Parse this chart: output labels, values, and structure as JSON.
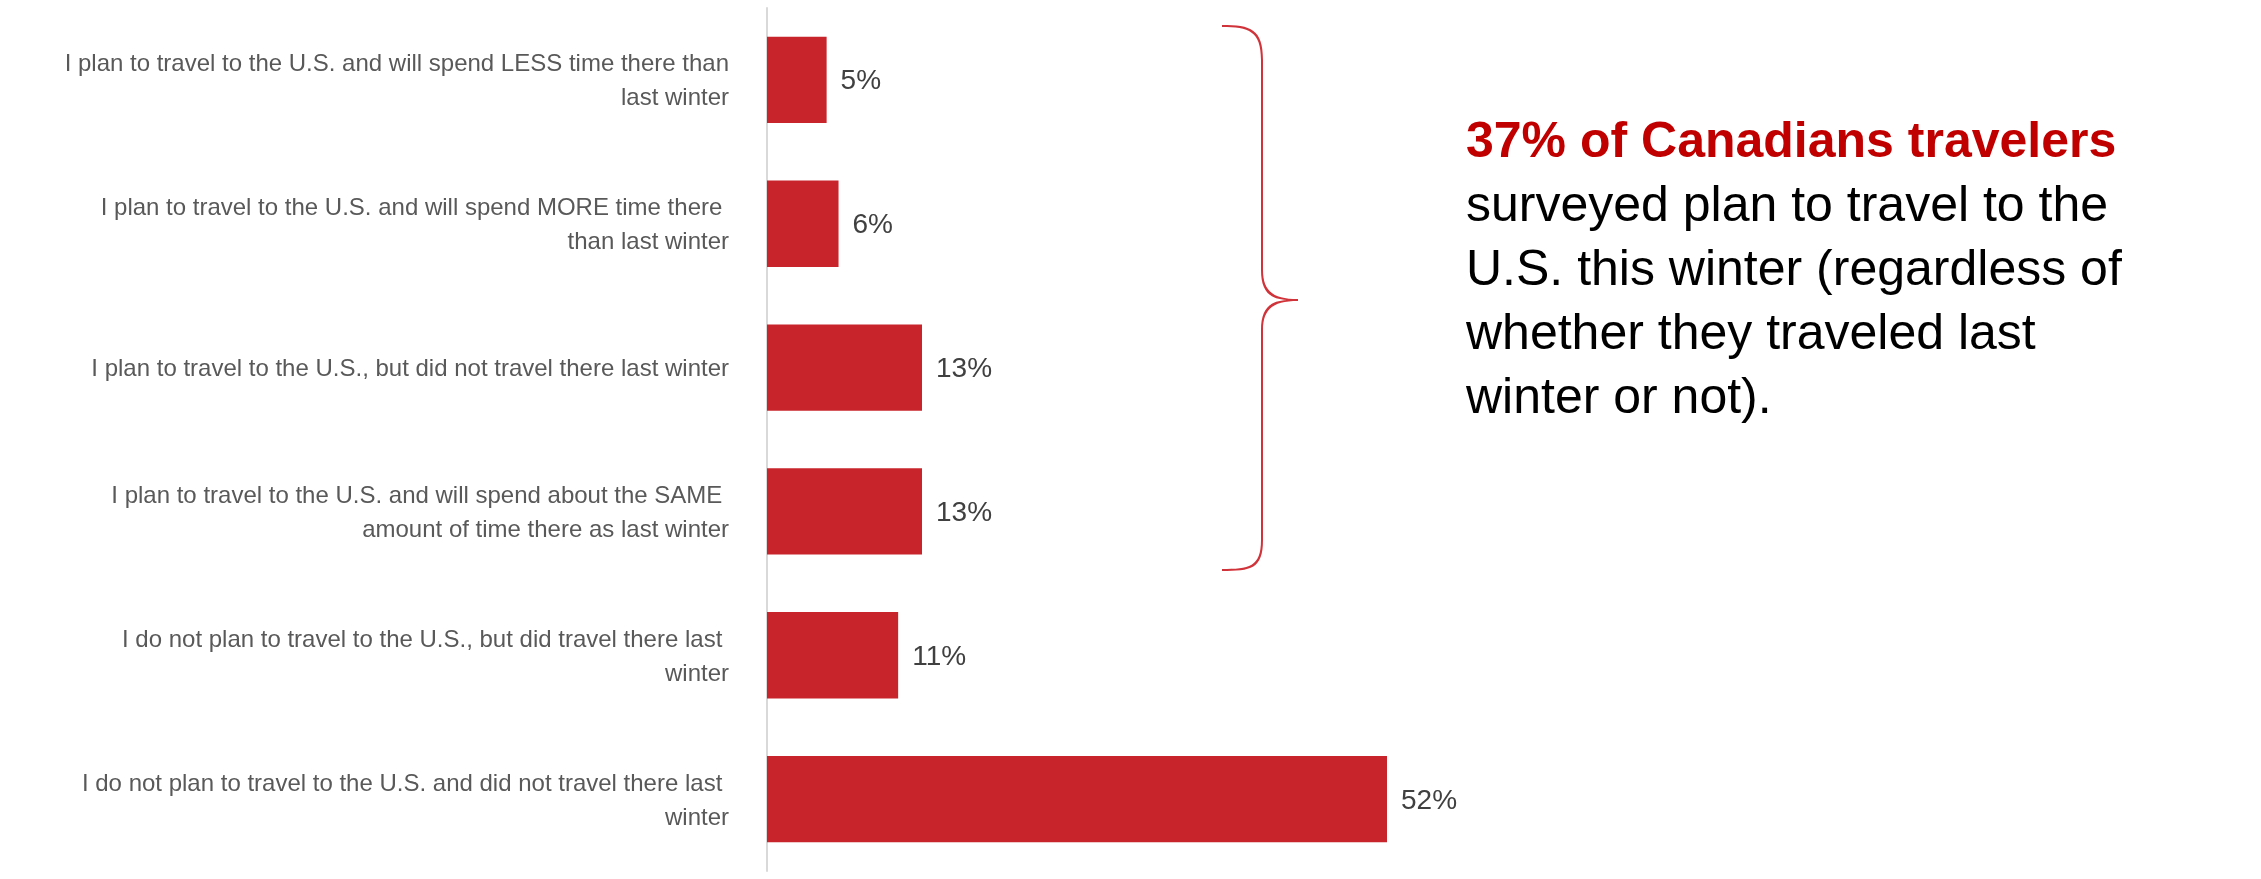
{
  "chart_data": {
    "type": "bar",
    "orientation": "horizontal",
    "categories": [
      "I plan to travel to the U.S. and will spend LESS time there than last winter",
      "I plan to travel to the U.S. and will spend MORE time there than last winter",
      "I plan to travel to the U.S., but did not travel there last winter",
      "I plan to travel to the U.S. and will spend about the SAME amount of time there as last winter",
      "I do not plan to travel to the U.S., but did travel there last winter",
      "I do not plan to travel to the U.S. and did not travel there last winter"
    ],
    "values": [
      5,
      6,
      13,
      13,
      11,
      52
    ],
    "value_labels": [
      "5%",
      "6%",
      "13%",
      "13%",
      "11%",
      "52%"
    ],
    "color": "#c8242b",
    "annotations": [
      "37% of Canadians travelers",
      "surveyed plan to travel to the U.S. this winter (regardless of whether they traveled last winter or not)."
    ]
  }
}
